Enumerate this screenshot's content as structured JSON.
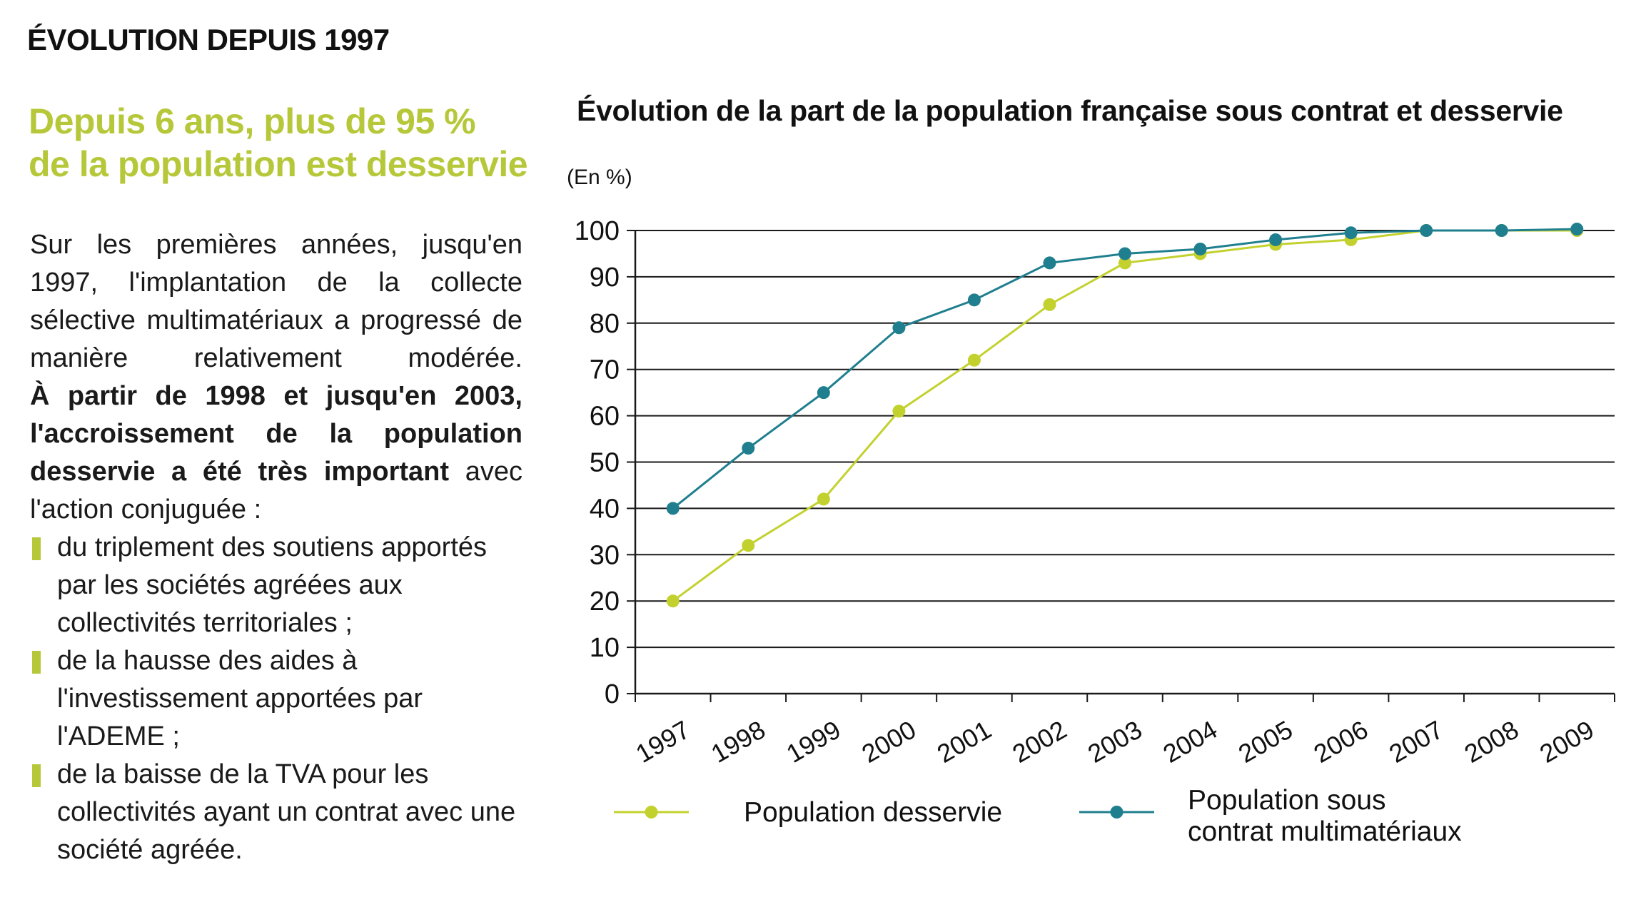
{
  "section": {
    "title": "ÉVOLUTION DEPUIS 1997"
  },
  "headline": {
    "line1": "Depuis 6 ans, plus de 95 %",
    "line2": "de la population est desservie"
  },
  "text": {
    "p1": "Sur les premières années, jusqu'en 1997, l'implantation de la collecte sélective multimatériaux a progressé de manière relativement modérée.",
    "p2_bold": "À partir de 1998 et jusqu'en 2003, l'accroissement de la population desservie a été très important",
    "p2_rest": " avec l'action conjuguée :",
    "bullets": [
      "du triplement des soutiens apportés par les sociétés agréées aux collectivités territoriales ;",
      "de la hausse des aides à l'investissement apportées par l'ADEME ;",
      "de la baisse de la TVA pour les collectivités ayant un contrat avec une société agréée."
    ]
  },
  "colors": {
    "accent": "#b6c83a",
    "series_desservie": "#c3d12e",
    "series_contrat": "#1f7f8e"
  },
  "chart_data": {
    "type": "line",
    "title": "Évolution de la part de la population française sous contrat et desservie",
    "ylabel": "(En %)",
    "xlabel": "",
    "ylim": [
      0,
      100
    ],
    "yticks": [
      0,
      10,
      20,
      30,
      40,
      50,
      60,
      70,
      80,
      90,
      100
    ],
    "categories": [
      "1997",
      "1998",
      "1999",
      "2000",
      "2001",
      "2002",
      "2003",
      "2004",
      "2005",
      "2006",
      "2007",
      "2008",
      "2009"
    ],
    "grid": true,
    "legend_position": "bottom",
    "series": [
      {
        "name": "Population desservie",
        "color": "#c3d12e",
        "values": [
          20,
          32,
          42,
          61,
          72,
          84,
          93,
          95,
          97,
          98,
          100,
          100,
          100
        ]
      },
      {
        "name": "Population sous contrat multimatériaux",
        "color": "#1f7f8e",
        "values": [
          40,
          53,
          65,
          79,
          85,
          93,
          95,
          96,
          98,
          99.5,
          100,
          100,
          100.3
        ]
      }
    ],
    "legend": [
      {
        "lines": [
          "Population desservie"
        ]
      },
      {
        "lines": [
          "Population sous",
          "contrat multimatériaux"
        ]
      }
    ]
  }
}
